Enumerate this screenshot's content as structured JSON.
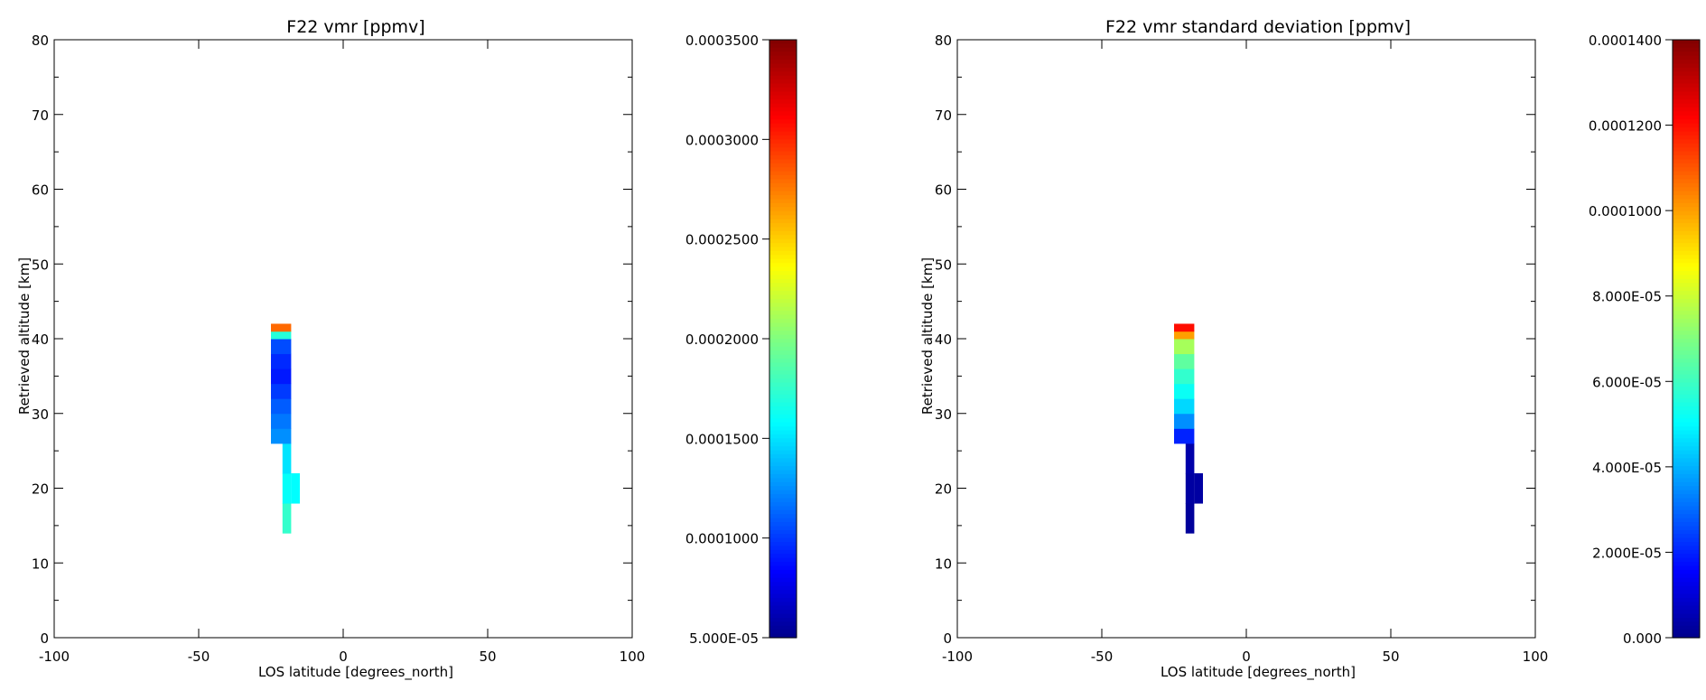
{
  "chart_data": [
    {
      "type": "heatmap",
      "title": "F22 vmr [ppmv]",
      "xlabel": "LOS latitude [degrees_north]",
      "ylabel": "Retrieved altitude [km]",
      "xlim": [
        -100,
        100
      ],
      "ylim": [
        0,
        80
      ],
      "x_ticks": [
        "-100",
        "-50",
        "0",
        "50",
        "100"
      ],
      "y_ticks": [
        "0",
        "10",
        "20",
        "30",
        "40",
        "50",
        "60",
        "70",
        "80"
      ],
      "colormap": "jet",
      "colorbar": {
        "range": [
          5e-05,
          0.00035
        ],
        "tick_values": [
          5e-05,
          0.0001,
          0.00015,
          0.0002,
          0.00025,
          0.0003,
          0.00035
        ],
        "tick_labels": [
          "5.000E-05",
          "0.0001000",
          "0.0001500",
          "0.0002000",
          "0.0002500",
          "0.0003000",
          "0.0003500"
        ]
      },
      "cells": [
        {
          "lat": [
            -21,
            -18
          ],
          "alt": [
            14,
            18
          ],
          "value": 0.000175
        },
        {
          "lat": [
            -21,
            -18
          ],
          "alt": [
            18,
            22
          ],
          "value": 0.00016
        },
        {
          "lat": [
            -18,
            -15
          ],
          "alt": [
            18,
            22
          ],
          "value": 0.000158
        },
        {
          "lat": [
            -21,
            -18
          ],
          "alt": [
            22,
            26
          ],
          "value": 0.00015
        },
        {
          "lat": [
            -25,
            -18
          ],
          "alt": [
            26,
            28
          ],
          "value": 0.000125
        },
        {
          "lat": [
            -25,
            -18
          ],
          "alt": [
            28,
            30
          ],
          "value": 0.000118
        },
        {
          "lat": [
            -25,
            -18
          ],
          "alt": [
            30,
            32
          ],
          "value": 0.00011
        },
        {
          "lat": [
            -25,
            -18
          ],
          "alt": [
            32,
            34
          ],
          "value": 0.0001
        },
        {
          "lat": [
            -25,
            -18
          ],
          "alt": [
            34,
            36
          ],
          "value": 9e-05
        },
        {
          "lat": [
            -25,
            -18
          ],
          "alt": [
            36,
            38
          ],
          "value": 9.5e-05
        },
        {
          "lat": [
            -25,
            -18
          ],
          "alt": [
            38,
            40
          ],
          "value": 0.000105
        },
        {
          "lat": [
            -25,
            -18
          ],
          "alt": [
            40,
            41
          ],
          "value": 0.00017
        },
        {
          "lat": [
            -25,
            -18
          ],
          "alt": [
            41,
            42
          ],
          "value": 0.00028
        }
      ]
    },
    {
      "type": "heatmap",
      "title": "F22 vmr standard deviation [ppmv]",
      "xlabel": "LOS latitude [degrees_north]",
      "ylabel": "Retrieved altitude [km]",
      "xlim": [
        -100,
        100
      ],
      "ylim": [
        0,
        80
      ],
      "x_ticks": [
        "-100",
        "-50",
        "0",
        "50",
        "100"
      ],
      "y_ticks": [
        "0",
        "10",
        "20",
        "30",
        "40",
        "50",
        "60",
        "70",
        "80"
      ],
      "colormap": "jet",
      "colorbar": {
        "range": [
          0,
          0.00014
        ],
        "tick_values": [
          0,
          2e-05,
          4e-05,
          6e-05,
          8e-05,
          0.0001,
          0.00012,
          0.00014
        ],
        "tick_labels": [
          "0.000",
          "2.000E-05",
          "4.000E-05",
          "6.000E-05",
          "8.000E-05",
          "0.0001000",
          "0.0001200",
          "0.0001400"
        ]
      },
      "cells": [
        {
          "lat": [
            -21,
            -18
          ],
          "alt": [
            14,
            18
          ],
          "value": 2e-06
        },
        {
          "lat": [
            -21,
            -18
          ],
          "alt": [
            18,
            22
          ],
          "value": 3e-06
        },
        {
          "lat": [
            -18,
            -15
          ],
          "alt": [
            18,
            22
          ],
          "value": 3e-06
        },
        {
          "lat": [
            -21,
            -18
          ],
          "alt": [
            22,
            26
          ],
          "value": 4e-06
        },
        {
          "lat": [
            -25,
            -18
          ],
          "alt": [
            26,
            28
          ],
          "value": 2e-05
        },
        {
          "lat": [
            -25,
            -18
          ],
          "alt": [
            28,
            30
          ],
          "value": 3.5e-05
        },
        {
          "lat": [
            -25,
            -18
          ],
          "alt": [
            30,
            32
          ],
          "value": 4.5e-05
        },
        {
          "lat": [
            -25,
            -18
          ],
          "alt": [
            32,
            34
          ],
          "value": 5.2e-05
        },
        {
          "lat": [
            -25,
            -18
          ],
          "alt": [
            34,
            36
          ],
          "value": 5.8e-05
        },
        {
          "lat": [
            -25,
            -18
          ],
          "alt": [
            36,
            38
          ],
          "value": 6.5e-05
        },
        {
          "lat": [
            -25,
            -18
          ],
          "alt": [
            38,
            40
          ],
          "value": 7.5e-05
        },
        {
          "lat": [
            -25,
            -18
          ],
          "alt": [
            40,
            41
          ],
          "value": 0.0001
        },
        {
          "lat": [
            -25,
            -18
          ],
          "alt": [
            41,
            42
          ],
          "value": 0.00012
        }
      ]
    }
  ]
}
